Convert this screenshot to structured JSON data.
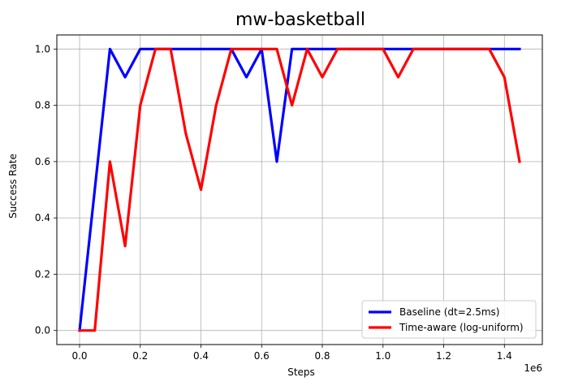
{
  "chart_data": {
    "type": "line",
    "title": "mw-basketball",
    "xlabel": "Steps",
    "ylabel": "Success Rate",
    "x_offset_label": "1e6",
    "xlim": [
      -75000,
      1525000
    ],
    "ylim": [
      -0.05,
      1.05
    ],
    "xticks": [
      0,
      200000,
      400000,
      600000,
      800000,
      1000000,
      1200000,
      1400000
    ],
    "xtick_labels": [
      "0.0",
      "0.2",
      "0.4",
      "0.6",
      "0.8",
      "1.0",
      "1.2",
      "1.4"
    ],
    "yticks": [
      0.0,
      0.2,
      0.4,
      0.6,
      0.8,
      1.0
    ],
    "ytick_labels": [
      "0.0",
      "0.2",
      "0.4",
      "0.6",
      "0.8",
      "1.0"
    ],
    "grid": true,
    "legend_position": "lower-right",
    "x": [
      0,
      50000,
      100000,
      150000,
      200000,
      250000,
      300000,
      350000,
      400000,
      450000,
      500000,
      550000,
      600000,
      650000,
      700000,
      750000,
      800000,
      850000,
      900000,
      950000,
      1000000,
      1050000,
      1100000,
      1150000,
      1200000,
      1250000,
      1300000,
      1350000,
      1400000,
      1450000
    ],
    "series": [
      {
        "name": "Baseline (dt=2.5ms)",
        "color": "#0000ff",
        "values": [
          0.0,
          0.5,
          1.0,
          0.9,
          1.0,
          1.0,
          1.0,
          1.0,
          1.0,
          1.0,
          1.0,
          0.9,
          1.0,
          0.6,
          1.0,
          1.0,
          1.0,
          1.0,
          1.0,
          1.0,
          1.0,
          1.0,
          1.0,
          1.0,
          1.0,
          1.0,
          1.0,
          1.0,
          1.0,
          1.0
        ]
      },
      {
        "name": "Time-aware (log-uniform)",
        "color": "#ff0000",
        "values": [
          0.0,
          0.0,
          0.6,
          0.3,
          0.8,
          1.0,
          1.0,
          0.7,
          0.5,
          0.8,
          1.0,
          1.0,
          1.0,
          1.0,
          0.8,
          1.0,
          0.9,
          1.0,
          1.0,
          1.0,
          1.0,
          0.9,
          1.0,
          1.0,
          1.0,
          1.0,
          1.0,
          1.0,
          0.9,
          0.6
        ]
      }
    ]
  }
}
